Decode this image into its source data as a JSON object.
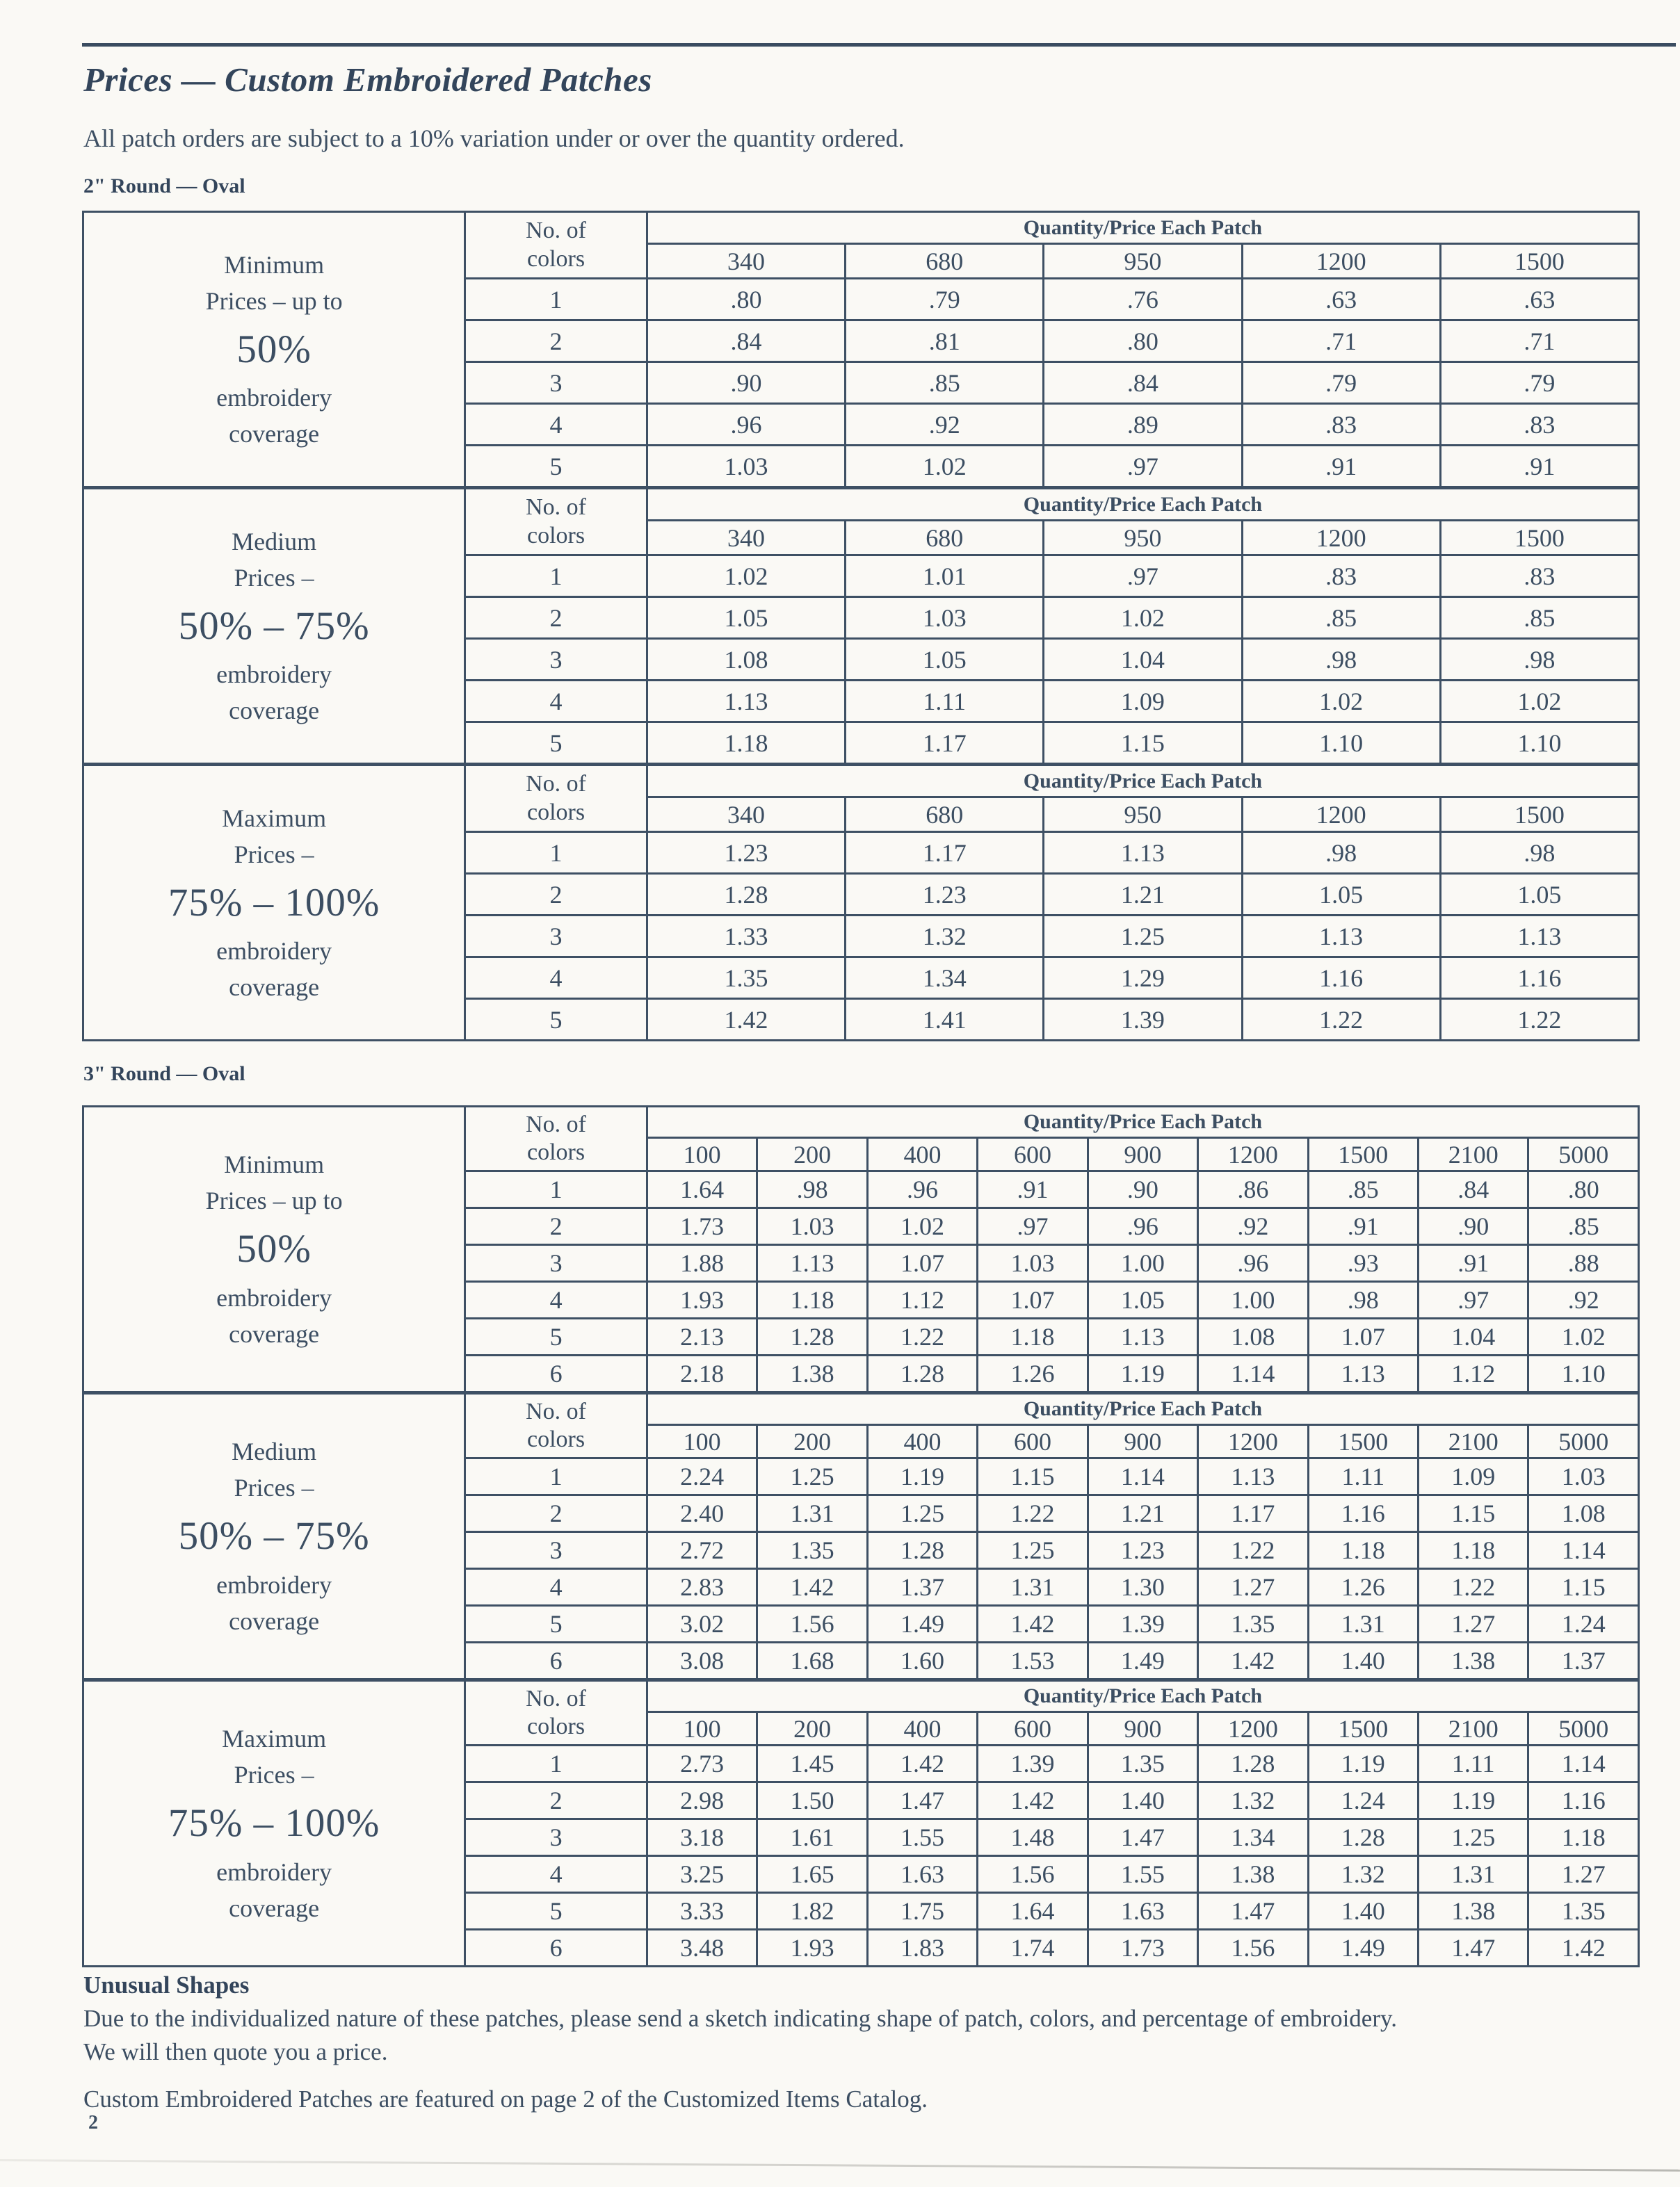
{
  "page": {
    "title": "Prices — Custom Embroidered Patches",
    "subtitle": "All patch orders are subject to a 10% variation under or over the quantity ordered.",
    "page_number": "2"
  },
  "colors": {
    "ink": "#3c4e62",
    "paper": "#faf9f5"
  },
  "table_headers": {
    "colors_line1": "No. of",
    "colors_line2": "colors",
    "quantity_title": "Quantity/Price Each Patch"
  },
  "sections": [
    {
      "id": "2inch",
      "label": "2\" Round — Oval",
      "tables": [
        {
          "name": "minimum",
          "side_label": [
            "Minimum",
            "Prices – up to",
            "50%",
            "embroidery",
            "coverage"
          ],
          "big_index": 2,
          "quantities": [
            "340",
            "680",
            "950",
            "1200",
            "1500"
          ],
          "rows": [
            [
              "1",
              ".80",
              ".79",
              ".76",
              ".63",
              ".63"
            ],
            [
              "2",
              ".84",
              ".81",
              ".80",
              ".71",
              ".71"
            ],
            [
              "3",
              ".90",
              ".85",
              ".84",
              ".79",
              ".79"
            ],
            [
              "4",
              ".96",
              ".92",
              ".89",
              ".83",
              ".83"
            ],
            [
              "5",
              "1.03",
              "1.02",
              ".97",
              ".91",
              ".91"
            ]
          ]
        },
        {
          "name": "medium",
          "side_label": [
            "Medium",
            "Prices –",
            "50% – 75%",
            "embroidery",
            "coverage"
          ],
          "big_index": 2,
          "quantities": [
            "340",
            "680",
            "950",
            "1200",
            "1500"
          ],
          "rows": [
            [
              "1",
              "1.02",
              "1.01",
              ".97",
              ".83",
              ".83"
            ],
            [
              "2",
              "1.05",
              "1.03",
              "1.02",
              ".85",
              ".85"
            ],
            [
              "3",
              "1.08",
              "1.05",
              "1.04",
              ".98",
              ".98"
            ],
            [
              "4",
              "1.13",
              "1.11",
              "1.09",
              "1.02",
              "1.02"
            ],
            [
              "5",
              "1.18",
              "1.17",
              "1.15",
              "1.10",
              "1.10"
            ]
          ]
        },
        {
          "name": "maximum",
          "side_label": [
            "Maximum",
            "Prices –",
            "75% – 100%",
            "embroidery",
            "coverage"
          ],
          "big_index": 2,
          "quantities": [
            "340",
            "680",
            "950",
            "1200",
            "1500"
          ],
          "rows": [
            [
              "1",
              "1.23",
              "1.17",
              "1.13",
              ".98",
              ".98"
            ],
            [
              "2",
              "1.28",
              "1.23",
              "1.21",
              "1.05",
              "1.05"
            ],
            [
              "3",
              "1.33",
              "1.32",
              "1.25",
              "1.13",
              "1.13"
            ],
            [
              "4",
              "1.35",
              "1.34",
              "1.29",
              "1.16",
              "1.16"
            ],
            [
              "5",
              "1.42",
              "1.41",
              "1.39",
              "1.22",
              "1.22"
            ]
          ]
        }
      ]
    },
    {
      "id": "3inch",
      "label": "3\" Round — Oval",
      "tables": [
        {
          "name": "minimum",
          "side_label": [
            "Minimum",
            "Prices – up to",
            "50%",
            "embroidery",
            "coverage"
          ],
          "big_index": 2,
          "quantities": [
            "100",
            "200",
            "400",
            "600",
            "900",
            "1200",
            "1500",
            "2100",
            "5000"
          ],
          "rows": [
            [
              "1",
              "1.64",
              ".98",
              ".96",
              ".91",
              ".90",
              ".86",
              ".85",
              ".84",
              ".80"
            ],
            [
              "2",
              "1.73",
              "1.03",
              "1.02",
              ".97",
              ".96",
              ".92",
              ".91",
              ".90",
              ".85"
            ],
            [
              "3",
              "1.88",
              "1.13",
              "1.07",
              "1.03",
              "1.00",
              ".96",
              ".93",
              ".91",
              ".88"
            ],
            [
              "4",
              "1.93",
              "1.18",
              "1.12",
              "1.07",
              "1.05",
              "1.00",
              ".98",
              ".97",
              ".92"
            ],
            [
              "5",
              "2.13",
              "1.28",
              "1.22",
              "1.18",
              "1.13",
              "1.08",
              "1.07",
              "1.04",
              "1.02"
            ],
            [
              "6",
              "2.18",
              "1.38",
              "1.28",
              "1.26",
              "1.19",
              "1.14",
              "1.13",
              "1.12",
              "1.10"
            ]
          ]
        },
        {
          "name": "medium",
          "side_label": [
            "Medium",
            "Prices –",
            "50% – 75%",
            "embroidery",
            "coverage"
          ],
          "big_index": 2,
          "quantities": [
            "100",
            "200",
            "400",
            "600",
            "900",
            "1200",
            "1500",
            "2100",
            "5000"
          ],
          "rows": [
            [
              "1",
              "2.24",
              "1.25",
              "1.19",
              "1.15",
              "1.14",
              "1.13",
              "1.11",
              "1.09",
              "1.03"
            ],
            [
              "2",
              "2.40",
              "1.31",
              "1.25",
              "1.22",
              "1.21",
              "1.17",
              "1.16",
              "1.15",
              "1.08"
            ],
            [
              "3",
              "2.72",
              "1.35",
              "1.28",
              "1.25",
              "1.23",
              "1.22",
              "1.18",
              "1.18",
              "1.14"
            ],
            [
              "4",
              "2.83",
              "1.42",
              "1.37",
              "1.31",
              "1.30",
              "1.27",
              "1.26",
              "1.22",
              "1.15"
            ],
            [
              "5",
              "3.02",
              "1.56",
              "1.49",
              "1.42",
              "1.39",
              "1.35",
              "1.31",
              "1.27",
              "1.24"
            ],
            [
              "6",
              "3.08",
              "1.68",
              "1.60",
              "1.53",
              "1.49",
              "1.42",
              "1.40",
              "1.38",
              "1.37"
            ]
          ]
        },
        {
          "name": "maximum",
          "side_label": [
            "Maximum",
            "Prices –",
            "75% – 100%",
            "embroidery",
            "coverage"
          ],
          "big_index": 2,
          "quantities": [
            "100",
            "200",
            "400",
            "600",
            "900",
            "1200",
            "1500",
            "2100",
            "5000"
          ],
          "rows": [
            [
              "1",
              "2.73",
              "1.45",
              "1.42",
              "1.39",
              "1.35",
              "1.28",
              "1.19",
              "1.11",
              "1.14"
            ],
            [
              "2",
              "2.98",
              "1.50",
              "1.47",
              "1.42",
              "1.40",
              "1.32",
              "1.24",
              "1.19",
              "1.16"
            ],
            [
              "3",
              "3.18",
              "1.61",
              "1.55",
              "1.48",
              "1.47",
              "1.34",
              "1.28",
              "1.25",
              "1.18"
            ],
            [
              "4",
              "3.25",
              "1.65",
              "1.63",
              "1.56",
              "1.55",
              "1.38",
              "1.32",
              "1.31",
              "1.27"
            ],
            [
              "5",
              "3.33",
              "1.82",
              "1.75",
              "1.64",
              "1.63",
              "1.47",
              "1.40",
              "1.38",
              "1.35"
            ],
            [
              "6",
              "3.48",
              "1.93",
              "1.83",
              "1.74",
              "1.73",
              "1.56",
              "1.49",
              "1.47",
              "1.42"
            ]
          ]
        }
      ]
    }
  ],
  "footer": {
    "unusual_shapes_title": "Unusual Shapes",
    "line1": "Due to the individualized nature of these patches, please send a sketch indicating shape of patch, colors, and percentage of embroidery.",
    "line2": "We will then quote you a price.",
    "catalog_note": "Custom Embroidered Patches are featured on page 2 of the Customized Items Catalog."
  }
}
